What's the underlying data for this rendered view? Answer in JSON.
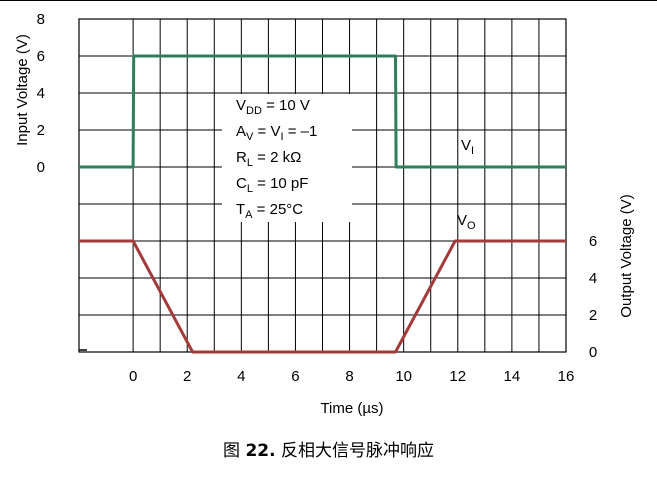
{
  "chart_data": {
    "type": "line",
    "xlabel": "Time (µs)",
    "ylabel_left": "Input Voltage (V)",
    "ylabel_right": "Output Voltage (V)",
    "x_ticks": [
      0,
      2,
      4,
      6,
      8,
      10,
      12,
      14,
      16
    ],
    "xlim": [
      -2,
      16
    ],
    "y_left_ticks": [
      0,
      2,
      4,
      6,
      8
    ],
    "y_right_ticks": [
      0,
      2,
      4,
      6
    ],
    "grid": true,
    "series": [
      {
        "name": "VI",
        "label_main": "V",
        "label_sub": "I",
        "axis": "left",
        "color": "#2e7d5b",
        "x": [
          -2,
          0,
          0.02,
          9.7,
          9.72,
          16
        ],
        "y": [
          0,
          0,
          6,
          6,
          0,
          0
        ]
      },
      {
        "name": "VO",
        "label_main": "V",
        "label_sub": "O",
        "axis": "right",
        "color": "#a33b3b",
        "x": [
          -2,
          0,
          2.2,
          9.7,
          11.9,
          16
        ],
        "y": [
          6,
          6,
          0,
          0,
          6,
          6
        ]
      }
    ],
    "annotations": [
      {
        "main": "V",
        "sub": "DD",
        "rest": " = 10 V"
      },
      {
        "main": "A",
        "sub": "V",
        "rest": " = V",
        "sub2": "I",
        "rest2": " = –1"
      },
      {
        "main": "R",
        "sub": "L",
        "rest": " = 2 kΩ"
      },
      {
        "main": "C",
        "sub": "L",
        "rest": " = 10 pF"
      },
      {
        "main": "T",
        "sub": "A",
        "rest": " = 25°C"
      }
    ]
  },
  "caption": {
    "prefix": "图 ",
    "number": "22.",
    "text": " 反相大信号脉冲响应"
  }
}
